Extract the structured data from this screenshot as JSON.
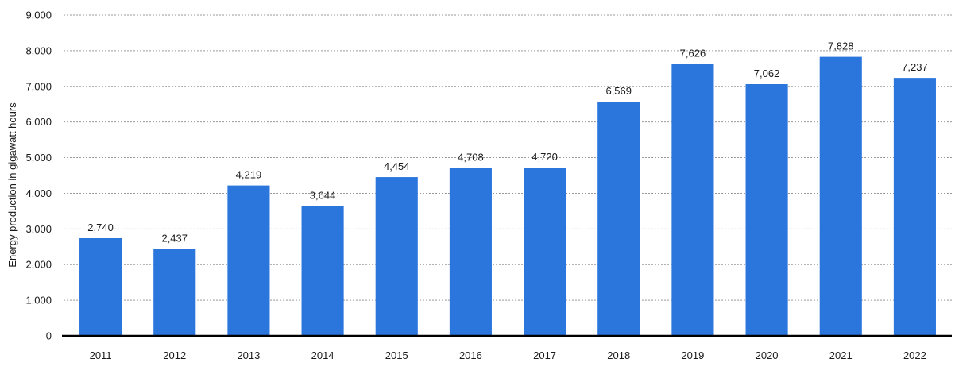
{
  "chart_data": {
    "type": "bar",
    "categories": [
      "2011",
      "2012",
      "2013",
      "2014",
      "2015",
      "2016",
      "2017",
      "2018",
      "2019",
      "2020",
      "2021",
      "2022"
    ],
    "values": [
      2740,
      2437,
      4219,
      3644,
      4454,
      4708,
      4720,
      6569,
      7626,
      7062,
      7828,
      7237
    ],
    "data_labels": [
      "2,740",
      "2,437",
      "4,219",
      "3,644",
      "4,454",
      "4,708",
      "4,720",
      "6,569",
      "7,626",
      "7,062",
      "7,828",
      "7,237"
    ],
    "title": "",
    "xlabel": "",
    "ylabel": "Energy production in gigawatt hours",
    "ylim": [
      0,
      9000
    ],
    "yticks": [
      0,
      1000,
      2000,
      3000,
      4000,
      5000,
      6000,
      7000,
      8000,
      9000
    ],
    "ytick_labels": [
      "0",
      "1,000",
      "2,000",
      "3,000",
      "4,000",
      "5,000",
      "6,000",
      "7,000",
      "8,000",
      "9,000"
    ],
    "grid": true,
    "legend": "none",
    "bar_color": "#2b76dd"
  }
}
